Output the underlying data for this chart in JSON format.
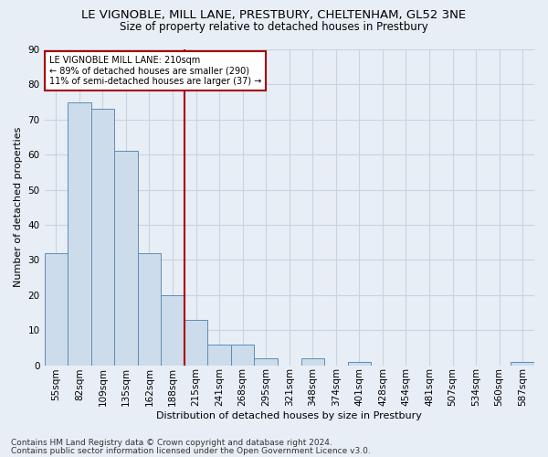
{
  "title_line1": "LE VIGNOBLE, MILL LANE, PRESTBURY, CHELTENHAM, GL52 3NE",
  "title_line2": "Size of property relative to detached houses in Prestbury",
  "xlabel": "Distribution of detached houses by size in Prestbury",
  "ylabel": "Number of detached properties",
  "categories": [
    "55sqm",
    "82sqm",
    "109sqm",
    "135sqm",
    "162sqm",
    "188sqm",
    "215sqm",
    "241sqm",
    "268sqm",
    "295sqm",
    "321sqm",
    "348sqm",
    "374sqm",
    "401sqm",
    "428sqm",
    "454sqm",
    "481sqm",
    "507sqm",
    "534sqm",
    "560sqm",
    "587sqm"
  ],
  "values": [
    32,
    75,
    73,
    61,
    32,
    20,
    13,
    6,
    6,
    2,
    0,
    2,
    0,
    1,
    0,
    0,
    0,
    0,
    0,
    0,
    1
  ],
  "bar_color": "#cddceb",
  "bar_edge_color": "#5b8db8",
  "vline_index": 6,
  "vline_color": "#aa0000",
  "annotation_text": "LE VIGNOBLE MILL LANE: 210sqm\n← 89% of detached houses are smaller (290)\n11% of semi-detached houses are larger (37) →",
  "annotation_box_color": "white",
  "annotation_box_edge_color": "#aa0000",
  "ylim": [
    0,
    90
  ],
  "yticks": [
    0,
    10,
    20,
    30,
    40,
    50,
    60,
    70,
    80,
    90
  ],
  "background_color": "#e8eef5",
  "grid_color": "#c8d4e0",
  "footer_line1": "Contains HM Land Registry data © Crown copyright and database right 2024.",
  "footer_line2": "Contains public sector information licensed under the Open Government Licence v3.0.",
  "title_fontsize": 9.5,
  "subtitle_fontsize": 8.5,
  "label_fontsize": 8,
  "tick_fontsize": 7.5,
  "footer_fontsize": 6.5
}
